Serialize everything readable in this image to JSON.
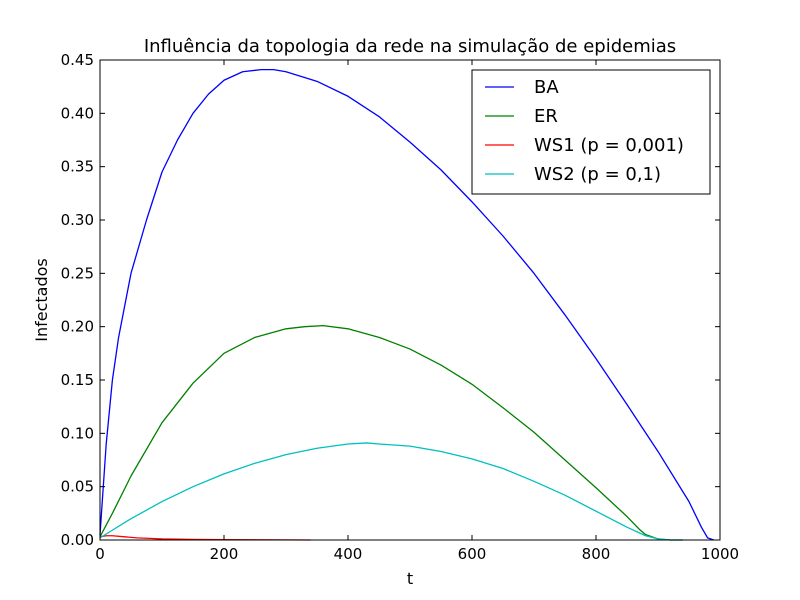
{
  "chart_data": {
    "type": "line",
    "title": "Influência da topologia da rede na simulação de epidemias",
    "xlabel": "t",
    "ylabel": "Infectados",
    "xlim": [
      0,
      1000
    ],
    "ylim": [
      0,
      0.45
    ],
    "xticks": [
      0,
      200,
      400,
      600,
      800,
      1000
    ],
    "xtick_labels": [
      "0",
      "200",
      "400",
      "600",
      "800",
      "1000"
    ],
    "yticks": [
      0,
      0.05,
      0.1,
      0.15,
      0.2,
      0.25,
      0.3,
      0.35,
      0.4,
      0.45
    ],
    "ytick_labels": [
      "0.00",
      "0.05",
      "0.10",
      "0.15",
      "0.20",
      "0.25",
      "0.30",
      "0.35",
      "0.40",
      "0.45"
    ],
    "grid": false,
    "legend_position": "top-right",
    "series": [
      {
        "name": "BA",
        "color": "#0000ff",
        "x": [
          0,
          10,
          20,
          30,
          50,
          75,
          100,
          125,
          150,
          175,
          200,
          230,
          260,
          280,
          300,
          350,
          400,
          450,
          500,
          550,
          600,
          650,
          700,
          750,
          800,
          850,
          900,
          950,
          970,
          980,
          990
        ],
        "y": [
          0.005,
          0.09,
          0.15,
          0.19,
          0.25,
          0.3,
          0.345,
          0.375,
          0.4,
          0.418,
          0.431,
          0.439,
          0.441,
          0.441,
          0.439,
          0.43,
          0.416,
          0.397,
          0.373,
          0.347,
          0.317,
          0.285,
          0.25,
          0.211,
          0.17,
          0.127,
          0.083,
          0.036,
          0.012,
          0.002,
          0.0
        ]
      },
      {
        "name": "ER",
        "color": "#008000",
        "x": [
          0,
          20,
          50,
          100,
          150,
          200,
          250,
          300,
          330,
          360,
          400,
          450,
          500,
          550,
          600,
          650,
          700,
          750,
          800,
          850,
          870,
          880,
          890,
          900,
          920,
          940
        ],
        "y": [
          0.003,
          0.025,
          0.06,
          0.11,
          0.147,
          0.175,
          0.19,
          0.198,
          0.2,
          0.201,
          0.198,
          0.19,
          0.179,
          0.164,
          0.146,
          0.124,
          0.101,
          0.075,
          0.049,
          0.022,
          0.01,
          0.005,
          0.003,
          0.001,
          0.0,
          0.0
        ]
      },
      {
        "name": "WS1 (p = 0,001)",
        "color": "#ff0000",
        "x": [
          0,
          10,
          20,
          40,
          60,
          80,
          100,
          150,
          200,
          250,
          300,
          340
        ],
        "y": [
          0.003,
          0.004,
          0.004,
          0.003,
          0.002,
          0.0015,
          0.001,
          0.0006,
          0.0003,
          0.0002,
          0.0001,
          0.0
        ]
      },
      {
        "name": "WS2 (p = 0,1)",
        "color": "#00bfbf",
        "x": [
          0,
          50,
          100,
          150,
          200,
          250,
          300,
          350,
          400,
          430,
          450,
          500,
          550,
          600,
          650,
          700,
          750,
          800,
          850,
          880,
          900,
          920,
          940
        ],
        "y": [
          0.002,
          0.02,
          0.036,
          0.05,
          0.062,
          0.072,
          0.08,
          0.086,
          0.09,
          0.091,
          0.09,
          0.088,
          0.083,
          0.076,
          0.067,
          0.055,
          0.042,
          0.027,
          0.012,
          0.004,
          0.001,
          0.0,
          0.0
        ]
      }
    ]
  }
}
